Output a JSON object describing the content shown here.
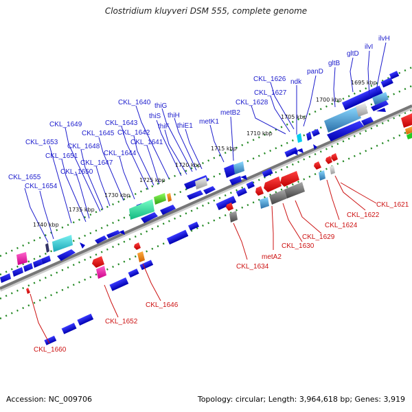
{
  "title": "Clostridium kluyveri DSM 555, complete genome",
  "footer": {
    "accession": "Accession: NC_009706",
    "stats": "Topology: circular; Length: 3,964,618 bp; Genes: 3,919"
  },
  "colors": {
    "forward_label": "#1a1acc",
    "reverse_label": "#cc1111",
    "tick_dots": "#228822",
    "axis": "#777777"
  },
  "scale_labels": [
    "1740 kbp",
    "1735 kbp",
    "1730 kbp",
    "1725 kbp",
    "1720 kbp",
    "1715 kbp",
    "1710 kbp",
    "1705 kbp",
    "1700 kbp",
    "1695 kbp"
  ],
  "forward_genes": [
    "CKL_1655",
    "CKL_1654",
    "CKL_1653",
    "CKL_1651",
    "CKL_1650",
    "CKL_1649",
    "CKL_1648",
    "CKL_1647",
    "CKL_1645",
    "CKL_1644",
    "CKL_1643",
    "CKL_1642",
    "CKL_1641",
    "CKL_1640",
    "thiS",
    "thiF",
    "thiG",
    "thiH",
    "thiE1",
    "metK1",
    "metB2",
    "CKL_1628",
    "CKL_1627",
    "CKL_1626",
    "ndk",
    "panD",
    "gltB",
    "gltD",
    "ilvI",
    "ilvH"
  ],
  "reverse_genes": [
    "CKL_1660",
    "CKL_1652",
    "CKL_1646",
    "CKL_1634",
    "metA2",
    "CKL_1630",
    "CKL_1629",
    "CKL_1624",
    "CKL_1622",
    "CKL_1621"
  ]
}
